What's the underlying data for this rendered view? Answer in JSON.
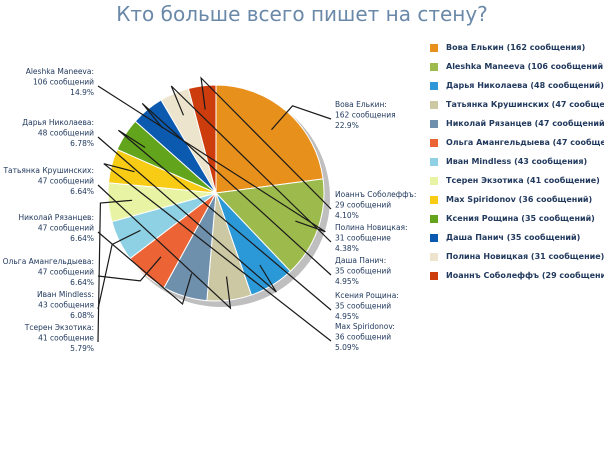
{
  "title": "Кто больше всего пишет на стену?",
  "chart_data": {
    "type": "pie",
    "title": "Кто больше всего пишет на стену?",
    "legend_position": "right",
    "slices": [
      {
        "name": "Вова Елькин",
        "label": "Вова Елькин:",
        "count": "162 сообщения",
        "value": 162,
        "pct": "22.9%",
        "legend": "Вова Елькин (162 сообщения)",
        "color": "#e8901c"
      },
      {
        "name": "Aleshka Maneeva",
        "label": "Aleshka Maneeva:",
        "count": "106 сообщений",
        "value": 106,
        "pct": "14.9%",
        "legend": "Aleshka Maneeva (106 сообщений)",
        "color": "#9dbb4c"
      },
      {
        "name": "Дарья Николаева",
        "label": "Дарья Николаева:",
        "count": "48 сообщений",
        "value": 48,
        "pct": "6.78%",
        "legend": "Дарья Николаева (48 сообщений)",
        "color": "#2b98d8"
      },
      {
        "name": "Татьянка Крушинских",
        "label": "Татьянка Крушинских:",
        "count": "47 сообщений",
        "value": 47,
        "pct": "6.64%",
        "legend": "Татьянка Крушинских (47 сообщений)",
        "color": "#ccc8a4"
      },
      {
        "name": "Николай Рязанцев",
        "label": "Николай Рязанцев:",
        "count": "47 сообщений",
        "value": 47,
        "pct": "6.64%",
        "legend": "Николай Рязанцев (47 сообщений)",
        "color": "#6f90ac"
      },
      {
        "name": "Ольга Амангельдыева",
        "label": "Ольга Амангельдыева:",
        "count": "47 сообщений",
        "value": 47,
        "pct": "6.64%",
        "legend": "Ольга Амангельдыева (47 сообщений)",
        "color": "#ec6436"
      },
      {
        "name": "Иван Mindless",
        "label": "Иван Mindless:",
        "count": "43 сообщения",
        "value": 43,
        "pct": "6.08%",
        "legend": "Иван Mindless (43 сообщения)",
        "color": "#8ed0e4"
      },
      {
        "name": "Тсерен Экзотика",
        "label": "Тсерен Экзотика:",
        "count": "41 сообщение",
        "value": 41,
        "pct": "5.79%",
        "legend": "Тсерен Экзотика (41 сообщение)",
        "color": "#e8f4a4"
      },
      {
        "name": "Max Spiridonov",
        "label": "Max Spiridonov:",
        "count": "36 сообщений",
        "value": 36,
        "pct": "5.09%",
        "legend": "Max Spiridonov (36 сообщений)",
        "color": "#f8cc14"
      },
      {
        "name": "Ксения Рощина",
        "label": "Ксения Рощина:",
        "count": "35 сообщений",
        "value": 35,
        "pct": "4.95%",
        "legend": "Ксения Рощина (35 сообщений)",
        "color": "#62a41c"
      },
      {
        "name": "Даша Панич",
        "label": "Даша Панич:",
        "count": "35 сообщений",
        "value": 35,
        "pct": "4.95%",
        "legend": "Даша Панич (35 сообщений)",
        "color": "#0c5ab0"
      },
      {
        "name": "Полина Новицкая",
        "label": "Полина Новицкая:",
        "count": "31 сообщение",
        "value": 31,
        "pct": "4.38%",
        "legend": "Полина Новицкая (31 сообщение)",
        "color": "#ece4cc"
      },
      {
        "name": "Иоаннъ Соболеффъ",
        "label": "Иоаннъ Соболеффъ:",
        "count": "29 сообщений",
        "value": 29,
        "pct": "4.10%",
        "legend": "Иоаннъ Соболеффъ (29 сообщений)",
        "color": "#cc3c0c"
      }
    ]
  }
}
